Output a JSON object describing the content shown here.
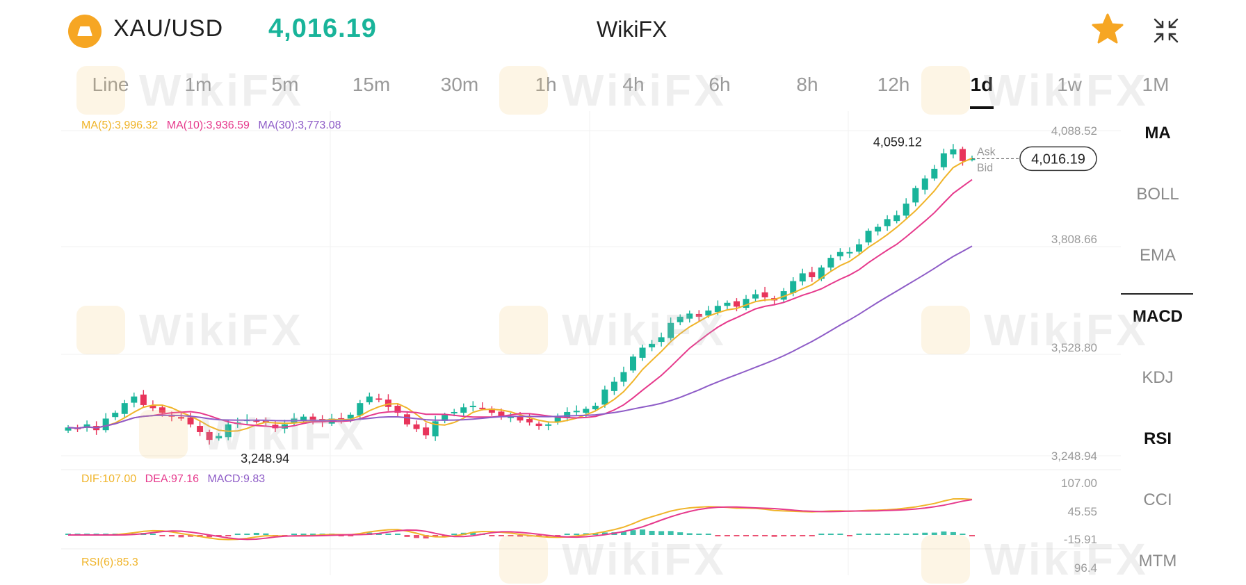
{
  "header": {
    "symbol": "XAU/USD",
    "price": "4,016.19",
    "brand": "WikiFX",
    "price_color": "#19b49a",
    "icons": [
      "gold-coin-icon",
      "star-icon",
      "collapse-icon"
    ]
  },
  "tabs": [
    {
      "label": "Line",
      "active": false
    },
    {
      "label": "1m",
      "active": false
    },
    {
      "label": "5m",
      "active": false
    },
    {
      "label": "15m",
      "active": false
    },
    {
      "label": "30m",
      "active": false
    },
    {
      "label": "1h",
      "active": false
    },
    {
      "label": "4h",
      "active": false
    },
    {
      "label": "6h",
      "active": false
    },
    {
      "label": "8h",
      "active": false
    },
    {
      "label": "12h",
      "active": false
    },
    {
      "label": "1d",
      "active": true
    },
    {
      "label": "1w",
      "active": false
    },
    {
      "label": "1M",
      "active": false
    }
  ],
  "indicators": [
    {
      "label": "MA",
      "active": true
    },
    {
      "label": "BOLL",
      "active": false
    },
    {
      "label": "EMA",
      "active": false
    },
    {
      "label": "MACD",
      "active": true
    },
    {
      "label": "KDJ",
      "active": false
    },
    {
      "label": "RSI",
      "active": true
    },
    {
      "label": "CCI",
      "active": false
    },
    {
      "label": "MTM",
      "active": false
    }
  ],
  "watermark_text": "WikiFX",
  "chart_data": {
    "type": "candlestick",
    "price_axis_ticks": [
      "4,088.52",
      "3,808.66",
      "3,528.80",
      "3,248.94"
    ],
    "ylim": [
      3248.94,
      4088.52
    ],
    "ma_legend": {
      "ma5": "MA(5):3,996.32",
      "ma10": "MA(10):3,936.59",
      "ma30": "MA(30):3,773.08"
    },
    "high_label": "4,059.12",
    "low_label": "3,248.94",
    "current_price_label": "4,016.19",
    "ask_label": "Ask",
    "bid_label": "Bid",
    "close": [
      3322,
      3318,
      3330,
      3315,
      3345,
      3360,
      3385,
      3402,
      3380,
      3372,
      3360,
      3350,
      3345,
      3330,
      3310,
      3290,
      3300,
      3330,
      3335,
      3342,
      3338,
      3334,
      3320,
      3330,
      3345,
      3350,
      3340,
      3335,
      3345,
      3340,
      3355,
      3385,
      3402,
      3395,
      3375,
      3360,
      3330,
      3318,
      3302,
      3338,
      3354,
      3362,
      3374,
      3378,
      3372,
      3360,
      3352,
      3350,
      3340,
      3335,
      3326,
      3330,
      3348,
      3362,
      3365,
      3370,
      3378,
      3420,
      3440,
      3465,
      3505,
      3528,
      3538,
      3555,
      3592,
      3608,
      3616,
      3608,
      3624,
      3636,
      3644,
      3634,
      3654,
      3666,
      3658,
      3650,
      3674,
      3700,
      3720,
      3710,
      3735,
      3760,
      3775,
      3775,
      3795,
      3830,
      3840,
      3860,
      3870,
      3900,
      3940,
      3965,
      3990,
      4030,
      4040,
      4010,
      4016
    ],
    "ma5_color": "#f0b429",
    "ma10_color": "#e6398c",
    "ma30_color": "#8e5cc7",
    "up_color": "#19b49a",
    "down_color": "#e8345b",
    "macd_legend": {
      "dif": "DIF:107.00",
      "dea": "DEA:97.16",
      "macd": "MACD:9.83"
    },
    "macd_axis_ticks": [
      "107.00",
      "45.55",
      "-15.91"
    ],
    "rsi_legend": "RSI(6):85.3",
    "rsi_axis_tick": "96.4"
  }
}
